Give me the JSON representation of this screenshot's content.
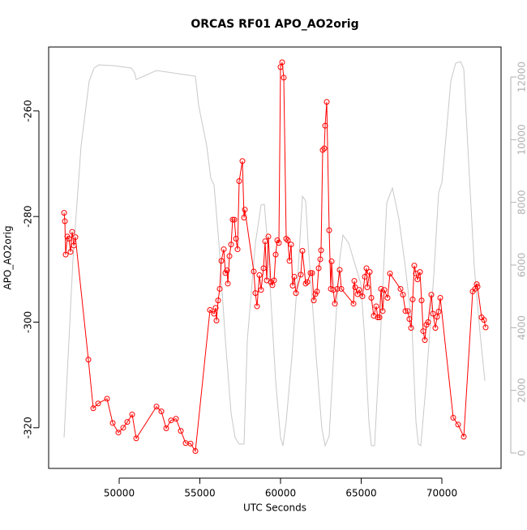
{
  "chart_data": {
    "type": "line",
    "title": "ORCAS RF01 APO_AO2orig",
    "xlabel": "UTC Seconds",
    "ylabel": "APO_AO2orig",
    "xlim": [
      45628,
      73668
    ],
    "xticks": [
      50000,
      55000,
      60000,
      65000,
      70000
    ],
    "ylim": [
      -327.7,
      -247.9
    ],
    "yticks": [
      -320,
      -300,
      -280,
      -260
    ],
    "y2lim": [
      -491,
      12957
    ],
    "y2ticks": [
      0,
      2000,
      4000,
      6000,
      8000,
      10000,
      12000
    ],
    "series": [
      {
        "color": "#ff0000",
        "marker": "circle",
        "x": [
          46583,
          46633,
          46683,
          46784,
          46884,
          46985,
          47085,
          47186,
          47286,
          48091,
          48392,
          48694,
          49246,
          49598,
          49950,
          50251,
          50503,
          50804,
          51055,
          52312,
          52613,
          52915,
          53216,
          53518,
          53819,
          54121,
          54422,
          54724,
          55628,
          55879,
          55980,
          56030,
          56131,
          56231,
          56332,
          56482,
          56583,
          56683,
          56734,
          56834,
          56935,
          57035,
          57136,
          57236,
          57337,
          57437,
          57638,
          57739,
          57789,
          58342,
          58442,
          58543,
          58693,
          58794,
          58945,
          59045,
          59146,
          59246,
          59397,
          59497,
          59598,
          59698,
          59799,
          59899,
          60000,
          60101,
          60201,
          60352,
          60452,
          60553,
          60653,
          60754,
          60854,
          60955,
          61256,
          61357,
          61558,
          61658,
          61859,
          61960,
          62060,
          62161,
          62261,
          62362,
          62462,
          62513,
          62613,
          62714,
          62764,
          62864,
          63015,
          63116,
          63166,
          63266,
          63367,
          63518,
          63668,
          63769,
          64523,
          64573,
          64623,
          64774,
          64874,
          65075,
          65226,
          65327,
          65377,
          65528,
          65628,
          65779,
          65930,
          66030,
          66131,
          66231,
          66332,
          66432,
          66633,
          66784,
          67437,
          67588,
          67739,
          67889,
          67990,
          68090,
          68191,
          68291,
          68392,
          68492,
          68643,
          68744,
          68844,
          68945,
          69045,
          69146,
          69347,
          69447,
          69598,
          69698,
          69799,
          69899,
          70703,
          71005,
          71357,
          71910,
          72060,
          72161,
          72211,
          72462,
          72613,
          72713
        ],
        "values": [
          -279.3,
          -280.9,
          -287.2,
          -283.8,
          -284.2,
          -286.7,
          -282.9,
          -285.5,
          -283.9,
          -307.1,
          -316.3,
          -315.4,
          -314.5,
          -319.1,
          -320.9,
          -320.0,
          -318.9,
          -317.5,
          -322.0,
          -316.0,
          -316.9,
          -320.1,
          -318.6,
          -318.3,
          -320.6,
          -322.9,
          -323.0,
          -324.4,
          -297.7,
          -298.4,
          -297.3,
          -299.7,
          -295.9,
          -293.7,
          -288.4,
          -286.2,
          -290.7,
          -290.2,
          -292.7,
          -287.5,
          -285.3,
          -280.6,
          -280.6,
          -284.2,
          -286.2,
          -273.3,
          -269.5,
          -280.2,
          -278.7,
          -290.4,
          -294.5,
          -297.0,
          -291.1,
          -293.9,
          -289.8,
          -284.7,
          -292.1,
          -283.8,
          -292.4,
          -293.0,
          -292.1,
          -287.2,
          -284.5,
          -285.0,
          -251.7,
          -250.8,
          -253.7,
          -284.2,
          -284.5,
          -288.4,
          -285.3,
          -293.1,
          -291.4,
          -294.5,
          -291.0,
          -286.5,
          -292.7,
          -292.4,
          -290.7,
          -290.7,
          -295.9,
          -294.7,
          -294.2,
          -289.8,
          -288.1,
          -286.4,
          -267.4,
          -267.1,
          -262.8,
          -258.3,
          -282.6,
          -293.7,
          -288.5,
          -293.9,
          -296.5,
          -293.7,
          -290.1,
          -293.7,
          -296.5,
          -292.2,
          -293.4,
          -294.7,
          -293.9,
          -295.1,
          -291.4,
          -289.8,
          -293.4,
          -290.5,
          -295.4,
          -298.8,
          -297.0,
          -299.1,
          -299.1,
          -293.7,
          -297.9,
          -293.9,
          -295.4,
          -290.8,
          -293.7,
          -294.8,
          -297.9,
          -297.9,
          -299.4,
          -301.1,
          -295.7,
          -289.3,
          -290.8,
          -291.9,
          -290.5,
          -295.9,
          -301.7,
          -303.4,
          -300.5,
          -300.0,
          -294.8,
          -298.4,
          -301.1,
          -299.0,
          -298.0,
          -295.4,
          -318.1,
          -319.4,
          -321.7,
          -294.2,
          -293.7,
          -292.8,
          -293.3,
          -299.1,
          -299.6,
          -301.0
        ]
      },
      {
        "color": "#c8c8c8",
        "axis": "y2",
        "x": [
          46583,
          47136,
          47638,
          48141,
          48442,
          48744,
          49648,
          50754,
          50955,
          51055,
          52312,
          54724,
          54925,
          55427,
          55678,
          55879,
          56181,
          56583,
          56935,
          57186,
          57437,
          57739,
          57940,
          58442,
          58794,
          58995,
          59196,
          59698,
          60000,
          60151,
          60352,
          60704,
          61106,
          61357,
          61558,
          61709,
          62211,
          62563,
          62764,
          63015,
          63317,
          63668,
          63869,
          64221,
          64975,
          65226,
          65477,
          65628,
          65829,
          66231,
          66583,
          66935,
          67337,
          67739,
          68141,
          68392,
          68543,
          68693,
          68995,
          69497,
          69799,
          70000,
          70251,
          70553,
          70854,
          71156,
          71357,
          71658,
          72010,
          72362,
          72663
        ],
        "values": [
          491,
          6181,
          9801,
          11870,
          12284,
          12387,
          12361,
          12284,
          12128,
          11921,
          12206,
          12025,
          11094,
          9801,
          8767,
          8560,
          6698,
          3595,
          1267,
          491,
          284,
          284,
          3595,
          6698,
          7913,
          7939,
          6698,
          2302,
          491,
          233,
          1009,
          3077,
          5922,
          8198,
          8042,
          6698,
          3077,
          776,
          233,
          543,
          3336,
          6181,
          6956,
          6698,
          5405,
          3595,
          1009,
          233,
          233,
          4112,
          7991,
          8456,
          7474,
          5922,
          4112,
          1009,
          284,
          233,
          2043,
          5663,
          8301,
          8637,
          10060,
          11870,
          12439,
          12491,
          12258,
          9284,
          5922,
          3853,
          2302
        ]
      }
    ]
  }
}
